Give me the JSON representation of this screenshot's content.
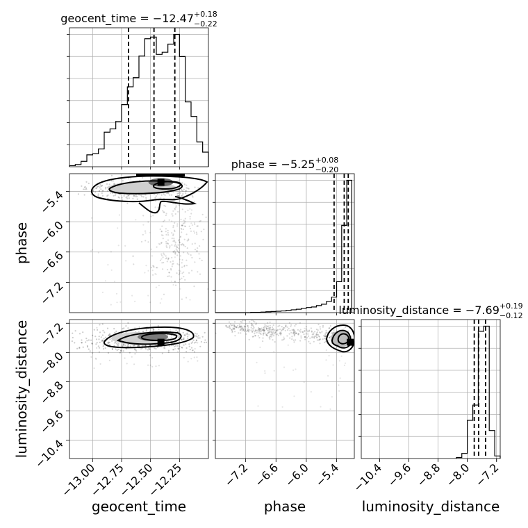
{
  "chart_data": {
    "type": "corner",
    "parameters": [
      {
        "name": "geocent_time",
        "label": "geocent_time",
        "range": [
          -13.2,
          -12.0
        ],
        "ticks": [
          -13.0,
          -12.75,
          -12.5,
          -12.25
        ],
        "tick_labels": [
          "−13.00",
          "−12.75",
          "−12.50",
          "−12.25"
        ],
        "median": -12.47,
        "plus": 0.18,
        "minus": 0.22,
        "title_prefix": "geocent_time = −12.47",
        "title_sup": "+0.18",
        "title_sub": "−0.22",
        "quantiles": [
          -12.69,
          -12.47,
          -12.29
        ],
        "hist_edges": [
          -13.2,
          -13.15,
          -13.1,
          -13.05,
          -13.0,
          -12.95,
          -12.9,
          -12.85,
          -12.8,
          -12.75,
          -12.7,
          -12.65,
          -12.6,
          -12.55,
          -12.5,
          -12.45,
          -12.4,
          -12.35,
          -12.3,
          -12.25,
          -12.2,
          -12.15,
          -12.1,
          -12.05,
          -12.0
        ],
        "hist_counts": [
          2,
          4,
          10,
          22,
          24,
          33,
          64,
          70,
          84,
          115,
          148,
          165,
          205,
          237,
          240,
          208,
          212,
          227,
          245,
          204,
          120,
          93,
          46,
          27
        ]
      },
      {
        "name": "phase",
        "label": "phase",
        "range": [
          -7.8,
          -5.05
        ],
        "ticks": [
          -7.2,
          -6.6,
          -6.0,
          -5.4
        ],
        "tick_labels": [
          "−7.2",
          "−6.6",
          "−6.0",
          "−5.4"
        ],
        "median": -5.25,
        "plus": 0.08,
        "minus": 0.2,
        "title_prefix": "phase = −5.25",
        "title_sup": "+0.08",
        "title_sub": "−0.20",
        "quantiles": [
          -5.45,
          -5.25,
          -5.17
        ],
        "hist_edges": [
          -7.8,
          -7.7,
          -7.6,
          -7.5,
          -7.4,
          -7.3,
          -7.2,
          -7.1,
          -7.0,
          -6.9,
          -6.8,
          -6.7,
          -6.6,
          -6.5,
          -6.4,
          -6.3,
          -6.2,
          -6.1,
          -6.0,
          -5.9,
          -5.8,
          -5.7,
          -5.6,
          -5.5,
          -5.4,
          -5.3,
          -5.2,
          -5.1
        ],
        "hist_counts": [
          0,
          0,
          0,
          0,
          0,
          0,
          0,
          1,
          1,
          2,
          3,
          4,
          5,
          6,
          8,
          10,
          12,
          15,
          18,
          20,
          25,
          30,
          40,
          55,
          110,
          310,
          470
        ]
      },
      {
        "name": "luminosity_distance",
        "label": "luminosity_distance",
        "range": [
          -10.9,
          -7.1
        ],
        "ticks": [
          -10.4,
          -9.6,
          -8.8,
          -8.0,
          -7.2
        ],
        "tick_labels": [
          "−10.4",
          "−9.6",
          "−8.8",
          "−8.0",
          "−7.2"
        ],
        "median": -7.69,
        "plus": 0.19,
        "minus": 0.12,
        "title_prefix": "luminosity_distance = −7.69",
        "title_sup": "+0.19",
        "title_sub": "−0.12",
        "quantiles": [
          -7.81,
          -7.69,
          -7.5
        ],
        "hist_edges": [
          -8.3,
          -8.15,
          -8.0,
          -7.85,
          -7.7,
          -7.55,
          -7.4,
          -7.25,
          -7.1
        ],
        "hist_counts": [
          4,
          20,
          150,
          210,
          500,
          520,
          110,
          10
        ]
      }
    ],
    "pairs": [
      {
        "x": "geocent_time",
        "y": "phase",
        "peak": [
          -12.41,
          -5.22
        ]
      },
      {
        "x": "geocent_time",
        "y": "luminosity_distance",
        "peak": [
          -12.41,
          -7.72
        ]
      },
      {
        "x": "phase",
        "y": "luminosity_distance",
        "peak": [
          -5.13,
          -7.72
        ]
      }
    ],
    "grid": true
  }
}
